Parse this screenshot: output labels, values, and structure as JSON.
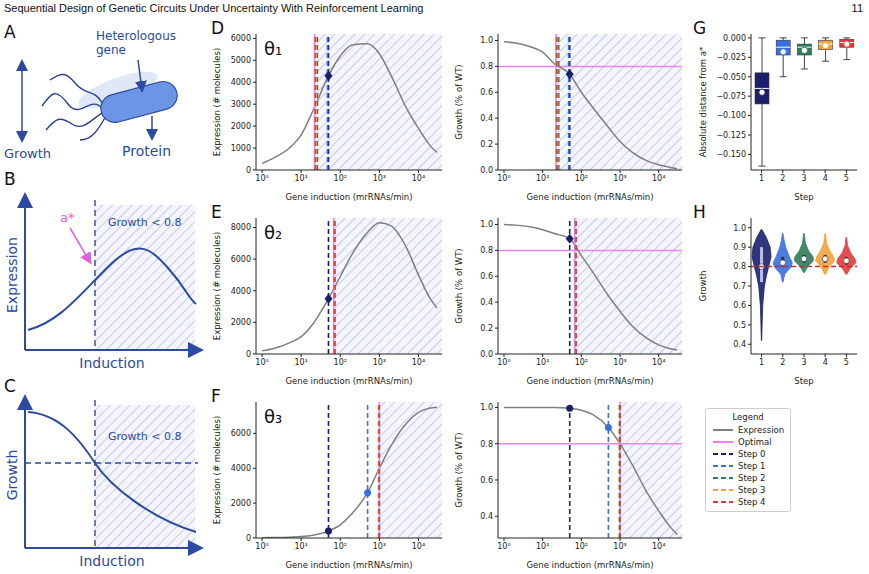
{
  "header": {
    "title": "Sequential Design of Genetic Circuits Under Uncertainty With Reinforcement Learning",
    "page": 11
  },
  "diagrams": [
    {
      "panel": "A",
      "top_label": "Heterologous gene",
      "side_label": "Growth",
      "bottom_label": "Protein"
    },
    {
      "panel": "B",
      "x_label": "Induction",
      "y_label": "Expression",
      "region_label": "Growth < 0.8",
      "marker_label": "a*"
    },
    {
      "panel": "C",
      "x_label": "Induction",
      "y_label": "Growth",
      "region_label": "Growth < 0.8"
    }
  ],
  "key": {
    "title": "Legend",
    "items": [
      {
        "name": "Expression",
        "color": "#7f7f7f",
        "line_style": "solid"
      },
      {
        "name": "Optimal",
        "color": "#ee82ee",
        "line_style": "solid"
      }
    ],
    "steps": [
      {
        "name": "Step 0",
        "color": "#1b1f6b",
        "line_style": "dashed"
      },
      {
        "name": "Step 1",
        "color": "#3a6fe0",
        "line_style": "dashed"
      },
      {
        "name": "Step 2",
        "color": "#2e7d5b",
        "line_style": "dashed"
      },
      {
        "name": "Step 3",
        "color": "#f2a33a",
        "line_style": "dashed"
      },
      {
        "name": "Step 4",
        "color": "#e23b3b",
        "line_style": "dashed"
      }
    ]
  },
  "chart_data": [
    {
      "panel": "D",
      "label": "θ₁",
      "type": "line",
      "log": "x",
      "x_label": "Gene induction (mrRNAs/min)",
      "y_label": "Expression (# molecules)",
      "xlim": [
        0.7,
        40000
      ],
      "xticks": [
        {
          "value": 1,
          "label": "10⁰"
        },
        {
          "value": 10,
          "label": "10¹"
        },
        {
          "value": 100,
          "label": "10²"
        },
        {
          "value": 1000,
          "label": "10³"
        },
        {
          "value": 10000,
          "label": "10⁴"
        }
      ],
      "ylim": [
        0,
        6200
      ],
      "yticks": [
        0,
        1000,
        2000,
        3000,
        4000,
        5000,
        6000
      ],
      "color": "#7f7f7f",
      "x": [
        1,
        2,
        5,
        10,
        20,
        50,
        100,
        200,
        500,
        1000,
        2000,
        5000,
        10000,
        20000,
        30000
      ],
      "values": [
        300,
        550,
        1000,
        1600,
        2700,
        4300,
        5200,
        5700,
        5750,
        5300,
        4300,
        2800,
        1900,
        1100,
        800
      ],
      "steps": [
        50,
        47,
        26,
        24,
        23
      ],
      "optimal": 22,
      "shaded_from": 22,
      "points": {
        "x": [
          50
        ],
        "y": [
          4300
        ],
        "step": [
          0
        ]
      },
      "marker": "diamond"
    },
    {
      "type": "line",
      "log": "x",
      "x_label": "Gene induction (mrRNAs/min)",
      "y_label": "Growth (% of WT)",
      "xlim": [
        0.7,
        40000
      ],
      "xticks": [
        {
          "value": 1,
          "label": "10⁰"
        },
        {
          "value": 10,
          "label": "10¹"
        },
        {
          "value": 100,
          "label": "10²"
        },
        {
          "value": 1000,
          "label": "10³"
        },
        {
          "value": 10000,
          "label": "10⁴"
        }
      ],
      "ylim": [
        0,
        1.05
      ],
      "yticks": [
        {
          "value": 0,
          "label": "0.0"
        },
        0.2,
        0.4,
        0.6,
        0.8,
        {
          "value": 1,
          "label": "1.0"
        }
      ],
      "color": "#7f7f7f",
      "x": [
        1,
        2,
        5,
        10,
        20,
        50,
        100,
        200,
        500,
        1000,
        2000,
        5000,
        10000,
        20000,
        30000
      ],
      "values": [
        0.99,
        0.98,
        0.95,
        0.91,
        0.82,
        0.74,
        0.6,
        0.48,
        0.33,
        0.22,
        0.14,
        0.07,
        0.04,
        0.02,
        0.01
      ],
      "steps": [
        50,
        47,
        26,
        24,
        23
      ],
      "optimal": 22,
      "shaded_from": 22,
      "threshold": 0.8,
      "points": {
        "x": [
          50
        ],
        "y": [
          0.74
        ],
        "step": [
          0
        ]
      },
      "marker": "diamond"
    },
    {
      "panel": "E",
      "label": "θ₂",
      "type": "line",
      "log": "x",
      "x_label": "Gene induction (mrRNAs/min)",
      "y_label": "Expression (# molecules)",
      "xlim": [
        0.7,
        40000
      ],
      "xticks": [
        {
          "value": 1,
          "label": "10⁰"
        },
        {
          "value": 10,
          "label": "10¹"
        },
        {
          "value": 100,
          "label": "10²"
        },
        {
          "value": 1000,
          "label": "10³"
        },
        {
          "value": 10000,
          "label": "10⁴"
        }
      ],
      "ylim": [
        0,
        8600
      ],
      "yticks": [
        0,
        2000,
        4000,
        6000,
        8000
      ],
      "color": "#7f7f7f",
      "x": [
        1,
        2,
        5,
        10,
        20,
        50,
        100,
        200,
        500,
        1000,
        2000,
        5000,
        10000,
        20000,
        30000
      ],
      "values": [
        200,
        350,
        700,
        1100,
        1900,
        3500,
        4900,
        6300,
        7700,
        8300,
        8100,
        6700,
        5000,
        3500,
        2900
      ],
      "steps": [
        50,
        70,
        72,
        71,
        73
      ],
      "optimal": 68,
      "shaded_from": 68,
      "points": {
        "x": [
          50
        ],
        "y": [
          3500
        ],
        "step": [
          0
        ]
      },
      "marker": "diamond"
    },
    {
      "type": "line",
      "log": "x",
      "x_label": "Gene induction (mrRNAs/min)",
      "y_label": "Growth (% of WT)",
      "xlim": [
        0.7,
        40000
      ],
      "xticks": [
        {
          "value": 1,
          "label": "10⁰"
        },
        {
          "value": 10,
          "label": "10¹"
        },
        {
          "value": 100,
          "label": "10²"
        },
        {
          "value": 1000,
          "label": "10³"
        },
        {
          "value": 10000,
          "label": "10⁴"
        }
      ],
      "ylim": [
        0,
        1.05
      ],
      "yticks": [
        {
          "value": 0,
          "label": "0.0"
        },
        0.2,
        0.4,
        0.6,
        0.8,
        {
          "value": 1,
          "label": "1.0"
        }
      ],
      "color": "#7f7f7f",
      "x": [
        1,
        2,
        5,
        10,
        20,
        50,
        100,
        200,
        500,
        1000,
        2000,
        5000,
        10000,
        20000,
        30000
      ],
      "values": [
        1.0,
        0.995,
        0.98,
        0.96,
        0.93,
        0.89,
        0.76,
        0.63,
        0.45,
        0.33,
        0.22,
        0.12,
        0.07,
        0.04,
        0.03
      ],
      "steps": [
        50,
        70,
        72,
        71,
        73
      ],
      "optimal": 68,
      "shaded_from": 68,
      "threshold": 0.8,
      "points": {
        "x": [
          50
        ],
        "y": [
          0.89
        ],
        "step": [
          0
        ]
      },
      "marker": "diamond"
    },
    {
      "panel": "F",
      "label": "θ₃",
      "type": "line",
      "log": "x",
      "x_label": "Gene induction (mrRNAs/min)",
      "y_label": "Expression (# molecules)",
      "xlim": [
        0.7,
        40000
      ],
      "xticks": [
        {
          "value": 1,
          "label": "10⁰"
        },
        {
          "value": 10,
          "label": "10¹"
        },
        {
          "value": 100,
          "label": "10²"
        },
        {
          "value": 1000,
          "label": "10³"
        },
        {
          "value": 10000,
          "label": "10⁴"
        }
      ],
      "ylim": [
        0,
        7800
      ],
      "yticks": [
        0,
        2000,
        4000,
        6000
      ],
      "color": "#7f7f7f",
      "x": [
        1,
        2,
        5,
        10,
        20,
        50,
        100,
        200,
        500,
        1000,
        2000,
        5000,
        10000,
        20000,
        30000
      ],
      "values": [
        20,
        30,
        50,
        80,
        160,
        400,
        750,
        1400,
        2600,
        4000,
        5300,
        6600,
        7200,
        7450,
        7500
      ],
      "steps": [
        50,
        500,
        1000,
        950,
        980
      ],
      "optimal": 1000,
      "shaded_from": 1000,
      "points": {
        "x": [
          50,
          500
        ],
        "y": [
          400,
          2600
        ],
        "step": [
          0,
          1
        ]
      },
      "marker": "circle"
    },
    {
      "type": "line",
      "log": "x",
      "x_label": "Gene induction (mrRNAs/min)",
      "y_label": "Growth (% of WT)",
      "xlim": [
        0.7,
        40000
      ],
      "xticks": [
        {
          "value": 1,
          "label": "10⁰"
        },
        {
          "value": 10,
          "label": "10¹"
        },
        {
          "value": 100,
          "label": "10²"
        },
        {
          "value": 1000,
          "label": "10³"
        },
        {
          "value": 10000,
          "label": "10⁴"
        }
      ],
      "ylim": [
        0.28,
        1.03
      ],
      "yticks": [
        0.4,
        0.6,
        0.8,
        {
          "value": 1,
          "label": "1.0"
        }
      ],
      "color": "#7f7f7f",
      "x": [
        1,
        2,
        5,
        10,
        20,
        50,
        100,
        200,
        500,
        1000,
        2000,
        5000,
        10000,
        20000,
        30000
      ],
      "values": [
        1.0,
        1.0,
        1.0,
        1.0,
        1.0,
        0.995,
        0.985,
        0.96,
        0.89,
        0.8,
        0.69,
        0.53,
        0.43,
        0.34,
        0.3
      ],
      "steps": [
        50,
        500,
        1000,
        950,
        980
      ],
      "optimal": 1000,
      "shaded_from": 1000,
      "threshold": 0.8,
      "points": {
        "x": [
          50,
          500
        ],
        "y": [
          0.995,
          0.89
        ],
        "step": [
          0,
          1
        ]
      },
      "marker": "circle"
    },
    {
      "panel": "G",
      "type": "box",
      "x_label": "Step",
      "y_label": "Absolute distance from a*",
      "categories": [
        1,
        2,
        3,
        4,
        5
      ],
      "colors": [
        "#1b1f6b",
        "#3a6fe0",
        "#2e7d5b",
        "#f2a33a",
        "#e23b3b"
      ],
      "ylim": [
        -0.17,
        0.005
      ],
      "yticks": [
        {
          "value": 0,
          "label": "0.000"
        },
        {
          "value": -0.025,
          "label": "−0.025"
        },
        {
          "value": -0.05,
          "label": "−0.050"
        },
        {
          "value": -0.075,
          "label": "−0.075"
        },
        {
          "value": -0.1,
          "label": "−0.100"
        },
        {
          "value": -0.125,
          "label": "−0.125"
        },
        {
          "value": -0.15,
          "label": "−0.150"
        }
      ],
      "whisker_low": [
        -0.165,
        -0.05,
        -0.04,
        -0.03,
        -0.028
      ],
      "q1": [
        -0.085,
        -0.022,
        -0.022,
        -0.015,
        -0.012
      ],
      "median": [
        -0.065,
        -0.012,
        -0.012,
        -0.008,
        -0.006
      ],
      "q3": [
        -0.045,
        -0.003,
        -0.008,
        -0.003,
        -0.002
      ],
      "whisker_high": [
        0.0,
        0.0,
        0.0,
        0.0,
        0.0
      ],
      "mean": [
        -0.07,
        -0.018,
        -0.016,
        -0.01,
        -0.008
      ]
    },
    {
      "panel": "H",
      "type": "violin",
      "x_label": "Step",
      "y_label": "Growth",
      "categories": [
        1,
        2,
        3,
        4,
        5
      ],
      "colors": [
        "#1b1f6b",
        "#3a6fe0",
        "#2e7d5b",
        "#f2a33a",
        "#e23b3b"
      ],
      "ylim": [
        0.35,
        1.05
      ],
      "yticks": [
        0.4,
        0.5,
        0.6,
        0.7,
        0.8,
        0.9,
        {
          "value": 1,
          "label": "1.0"
        }
      ],
      "threshold": 0.8,
      "min": [
        0.42,
        0.72,
        0.77,
        0.76,
        0.76
      ],
      "max": [
        0.99,
        0.97,
        0.97,
        0.97,
        0.95
      ],
      "q1": [
        0.72,
        0.8,
        0.82,
        0.82,
        0.81
      ],
      "median": [
        0.8,
        0.82,
        0.84,
        0.84,
        0.83
      ],
      "q3": [
        0.9,
        0.85,
        0.86,
        0.86,
        0.85
      ],
      "mean": [
        0.8,
        0.82,
        0.84,
        0.84,
        0.83
      ],
      "density_y": [
        [
          0.42,
          0.5,
          0.6,
          0.7,
          0.75,
          0.8,
          0.85,
          0.9,
          0.95,
          0.99
        ],
        [
          0.72,
          0.76,
          0.8,
          0.82,
          0.85,
          0.9,
          0.94,
          0.97
        ],
        [
          0.77,
          0.8,
          0.83,
          0.85,
          0.88,
          0.92,
          0.97
        ],
        [
          0.76,
          0.8,
          0.83,
          0.85,
          0.88,
          0.92,
          0.97
        ],
        [
          0.76,
          0.79,
          0.82,
          0.84,
          0.87,
          0.91,
          0.95
        ]
      ],
      "density": [
        [
          0.02,
          0.06,
          0.12,
          0.3,
          0.5,
          0.75,
          1.0,
          0.9,
          0.5,
          0.05
        ],
        [
          0.03,
          0.2,
          0.9,
          1.0,
          0.7,
          0.3,
          0.12,
          0.03
        ],
        [
          0.05,
          0.4,
          1.0,
          0.95,
          0.5,
          0.15,
          0.03
        ],
        [
          0.05,
          0.45,
          1.0,
          0.9,
          0.5,
          0.15,
          0.03
        ],
        [
          0.04,
          0.4,
          1.0,
          0.9,
          0.45,
          0.12,
          0.03
        ]
      ]
    }
  ]
}
